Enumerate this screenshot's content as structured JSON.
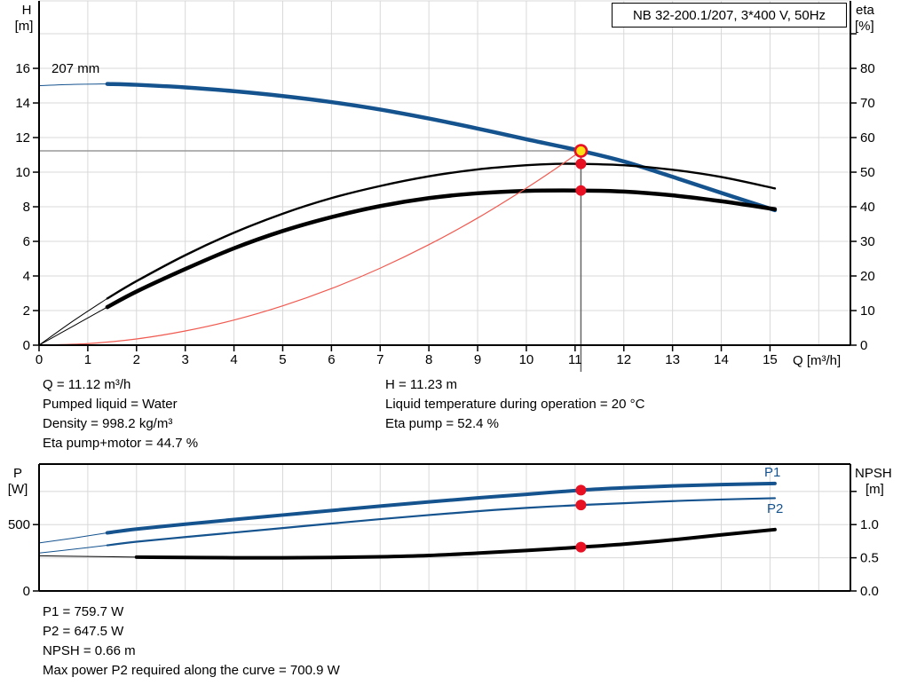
{
  "annotations_mid": {
    "left": [
      "Q = 11.12 m³/h",
      "Pumped liquid = Water",
      "Density = 998.2 kg/m³",
      "Eta pump+motor = 44.7 %"
    ],
    "right": [
      "H = 11.23 m",
      "Liquid temperature during operation = 20 °C",
      "Eta pump = 52.4 %"
    ]
  },
  "annotations_bottom": [
    "P1 = 759.7 W",
    "P2 = 647.5 W",
    "NPSH = 0.66 m",
    "Max power P2 required along the curve = 700.9 W"
  ],
  "colors": {
    "curve_blue": "#15538f",
    "curve_black": "#000000",
    "system_curve_red": "#f05a50",
    "marker_red": "#e81123",
    "marker_yellow": "#ffe014",
    "grid": "#d8d8d8",
    "crosshair_h": "#999999",
    "crosshair_v": "#666666"
  },
  "chart_data": [
    {
      "type": "line",
      "title": "NB 32-200.1/207, 3*400 V, 50Hz",
      "xlabel": "Q [m³/h]",
      "ylabel_left": "H [m]",
      "ylabel_right": "eta [%]",
      "axis_labels": {
        "left_name": "H",
        "left_unit": "[m]",
        "right_name": "eta",
        "right_unit": "[%]",
        "x": "Q [m³/h]"
      },
      "curve_label": "207 mm",
      "xlim": [
        0,
        16.65
      ],
      "ylim_left": [
        0,
        19.9
      ],
      "ylim_right": [
        0,
        99.5
      ],
      "x_grid": [
        1,
        2,
        3,
        4,
        5,
        6,
        7,
        8,
        9,
        10,
        11,
        12,
        13,
        14,
        15,
        16
      ],
      "y_grid": {
        "axis": "left",
        "values": [
          2,
          4,
          6,
          8,
          10,
          12,
          14,
          16,
          18
        ]
      },
      "x_ticks": [
        {
          "v": 0,
          "label": "0"
        },
        {
          "v": 1,
          "label": "1"
        },
        {
          "v": 2,
          "label": "2"
        },
        {
          "v": 3,
          "label": "3"
        },
        {
          "v": 4,
          "label": "4"
        },
        {
          "v": 5,
          "label": "5"
        },
        {
          "v": 6,
          "label": "6"
        },
        {
          "v": 7,
          "label": "7"
        },
        {
          "v": 8,
          "label": "8"
        },
        {
          "v": 9,
          "label": "9"
        },
        {
          "v": 10,
          "label": "10"
        },
        {
          "v": 11,
          "label": "11"
        },
        {
          "v": 12,
          "label": "12"
        },
        {
          "v": 13,
          "label": "13"
        },
        {
          "v": 14,
          "label": "14"
        },
        {
          "v": 15,
          "label": "15"
        }
      ],
      "y_ticks_left": [
        {
          "v": 0,
          "label": "0"
        },
        {
          "v": 2,
          "label": "2"
        },
        {
          "v": 4,
          "label": "4"
        },
        {
          "v": 6,
          "label": "6"
        },
        {
          "v": 8,
          "label": "8"
        },
        {
          "v": 10,
          "label": "10"
        },
        {
          "v": 12,
          "label": "12"
        },
        {
          "v": 14,
          "label": "14"
        },
        {
          "v": 16,
          "label": "16"
        }
      ],
      "y_ticks_right": [
        {
          "v": 0,
          "label": "0"
        },
        {
          "v": 10,
          "label": "10"
        },
        {
          "v": 20,
          "label": "20"
        },
        {
          "v": 30,
          "label": "30"
        },
        {
          "v": 40,
          "label": "40"
        },
        {
          "v": 50,
          "label": "50"
        },
        {
          "v": 60,
          "label": "60"
        },
        {
          "v": 70,
          "label": "70"
        },
        {
          "v": 80,
          "label": "80"
        }
      ],
      "y_ticks_right_unlabeled": [
        90
      ],
      "series": [
        {
          "name": "QH curve 207 mm",
          "axis": "left",
          "color": "#15538f",
          "width": 4.5,
          "thin_until": 1.4,
          "thin_width": 1,
          "points": [
            [
              0,
              15.0
            ],
            [
              0.7,
              15.07
            ],
            [
              1.4,
              15.1
            ],
            [
              2,
              15.05
            ],
            [
              3,
              14.9
            ],
            [
              4,
              14.68
            ],
            [
              5,
              14.4
            ],
            [
              6,
              14.05
            ],
            [
              7,
              13.62
            ],
            [
              8,
              13.1
            ],
            [
              9,
              12.52
            ],
            [
              10,
              11.9
            ],
            [
              11.12,
              11.23
            ],
            [
              12,
              10.62
            ],
            [
              13,
              9.73
            ],
            [
              14,
              8.8
            ],
            [
              15.1,
              7.8
            ]
          ]
        },
        {
          "name": "eta pump",
          "axis": "right",
          "color": "#000000",
          "width": 2.4,
          "thin_until": 1.4,
          "thin_width": 1,
          "points": [
            [
              0,
              0
            ],
            [
              0.7,
              7
            ],
            [
              1.4,
              13.5
            ],
            [
              2,
              18.5
            ],
            [
              3,
              26
            ],
            [
              4,
              32.5
            ],
            [
              5,
              38
            ],
            [
              6,
              42.5
            ],
            [
              7,
              46
            ],
            [
              8,
              48.8
            ],
            [
              9,
              50.8
            ],
            [
              10,
              52
            ],
            [
              10.6,
              52.4
            ],
            [
              11.12,
              52.4
            ],
            [
              12,
              52
            ],
            [
              13,
              50.7
            ],
            [
              14,
              48.6
            ],
            [
              15.1,
              45.3
            ]
          ]
        },
        {
          "name": "eta pump+motor",
          "axis": "right",
          "color": "#000000",
          "width": 4.5,
          "thin_until": 1.4,
          "thin_width": 1,
          "points": [
            [
              0,
              0
            ],
            [
              0.7,
              5.5
            ],
            [
              1.4,
              11
            ],
            [
              2,
              15.5
            ],
            [
              3,
              22
            ],
            [
              4,
              28
            ],
            [
              5,
              33
            ],
            [
              6,
              37
            ],
            [
              7,
              40.2
            ],
            [
              8,
              42.5
            ],
            [
              9,
              43.9
            ],
            [
              10,
              44.6
            ],
            [
              11.12,
              44.7
            ],
            [
              12,
              44.4
            ],
            [
              13,
              43.3
            ],
            [
              14,
              41.6
            ],
            [
              15.1,
              39.3
            ]
          ]
        },
        {
          "name": "system curve",
          "axis": "left",
          "color": "#f05a50",
          "width": 1.2,
          "points": [
            [
              0,
              0
            ],
            [
              1,
              0.09
            ],
            [
              2,
              0.36
            ],
            [
              3,
              0.82
            ],
            [
              4,
              1.45
            ],
            [
              5,
              2.27
            ],
            [
              6,
              3.27
            ],
            [
              7,
              4.45
            ],
            [
              8,
              5.81
            ],
            [
              9,
              7.35
            ],
            [
              10,
              9.08
            ],
            [
              10.6,
              10.2
            ],
            [
              11.12,
              11.23
            ]
          ]
        }
      ],
      "crosshair": {
        "q": 11.12,
        "h": 11.23
      },
      "duty_point": {
        "q": 11.12,
        "h": 11.23,
        "eta_pump": 52.4,
        "eta_pump_motor": 44.7
      },
      "markers": [
        {
          "q": 11.12,
          "v": 44.7,
          "axis": "right",
          "style": "dot",
          "name": "eta-pump-motor-point"
        },
        {
          "q": 11.12,
          "v": 52.4,
          "axis": "right",
          "style": "dot",
          "name": "eta-pump-point"
        },
        {
          "q": 11.12,
          "v": 11.23,
          "axis": "left",
          "style": "duty",
          "name": "duty-point"
        }
      ]
    },
    {
      "type": "line",
      "title": "",
      "xlabel": "",
      "ylabel_left": "P [W]",
      "ylabel_right": "NPSH [m]",
      "axis_labels": {
        "left_name": "P",
        "left_unit": "[W]",
        "right_name": "NPSH",
        "right_unit": "[m]"
      },
      "series_labels": {
        "p1": "P1",
        "p2": "P2"
      },
      "xlim": [
        0,
        16.65
      ],
      "ylim_left": [
        0,
        956
      ],
      "ylim_right": [
        0,
        1.912
      ],
      "x_grid": [
        1,
        2,
        3,
        4,
        5,
        6,
        7,
        8,
        9,
        10,
        11,
        12,
        13,
        14,
        15,
        16
      ],
      "y_grid": {
        "axis": "right",
        "values": [
          0.5,
          1.0,
          1.5
        ]
      },
      "x_ticks": [],
      "y_ticks_left": [
        {
          "v": 0,
          "label": "0"
        },
        {
          "v": 500,
          "label": "500"
        }
      ],
      "y_ticks_right": [
        {
          "v": 0,
          "label": "0.0"
        },
        {
          "v": 0.5,
          "label": "0.5"
        },
        {
          "v": 1,
          "label": "1.0"
        }
      ],
      "y_ticks_right_unlabeled": [
        1.5
      ],
      "series": [
        {
          "name": "P1",
          "axis": "left",
          "color": "#15538f",
          "width": 4,
          "thin_until": 1.4,
          "thin_width": 1,
          "points": [
            [
              0,
              362
            ],
            [
              0.7,
              398
            ],
            [
              1.4,
              438
            ],
            [
              2,
              466
            ],
            [
              3,
              503
            ],
            [
              4,
              538
            ],
            [
              5,
              572
            ],
            [
              6,
              606
            ],
            [
              7,
              639
            ],
            [
              8,
              671
            ],
            [
              9,
              701
            ],
            [
              10,
              728
            ],
            [
              11.12,
              759.7
            ],
            [
              12,
              777
            ],
            [
              13,
              791
            ],
            [
              14,
              801
            ],
            [
              15.1,
              810
            ]
          ]
        },
        {
          "name": "P2",
          "axis": "left",
          "color": "#15538f",
          "width": 2.2,
          "thin_until": 1.4,
          "thin_width": 1,
          "points": [
            [
              0,
              286
            ],
            [
              0.7,
              314
            ],
            [
              1.4,
              344
            ],
            [
              2,
              371
            ],
            [
              3,
              406
            ],
            [
              4,
              440
            ],
            [
              5,
              474
            ],
            [
              6,
              508
            ],
            [
              7,
              541
            ],
            [
              8,
              572
            ],
            [
              9,
              601
            ],
            [
              10,
              626
            ],
            [
              11.12,
              647.5
            ],
            [
              12,
              661
            ],
            [
              13,
              677
            ],
            [
              14,
              689
            ],
            [
              15.1,
              699
            ]
          ]
        },
        {
          "name": "NPSH",
          "axis": "right",
          "color": "#000000",
          "width": 4,
          "thin_until": 1.4,
          "thin_width": 1,
          "points": [
            [
              0,
              0.53
            ],
            [
              1,
              0.52
            ],
            [
              2,
              0.51
            ],
            [
              3,
              0.505
            ],
            [
              4,
              0.5
            ],
            [
              5,
              0.5
            ],
            [
              6,
              0.505
            ],
            [
              7,
              0.515
            ],
            [
              8,
              0.535
            ],
            [
              9,
              0.57
            ],
            [
              10,
              0.61
            ],
            [
              11.12,
              0.66
            ],
            [
              12,
              0.705
            ],
            [
              13,
              0.77
            ],
            [
              14,
              0.845
            ],
            [
              15.1,
              0.925
            ]
          ]
        }
      ],
      "duty_point": {
        "q": 11.12,
        "p1": 759.7,
        "p2": 647.5,
        "npsh": 0.66
      },
      "markers": [
        {
          "q": 11.12,
          "v": 759.7,
          "axis": "left",
          "style": "dot",
          "name": "p1-point"
        },
        {
          "q": 11.12,
          "v": 647.5,
          "axis": "left",
          "style": "dot",
          "name": "p2-point"
        },
        {
          "q": 11.12,
          "v": 0.66,
          "axis": "right",
          "style": "dot",
          "name": "npsh-point"
        }
      ]
    }
  ]
}
